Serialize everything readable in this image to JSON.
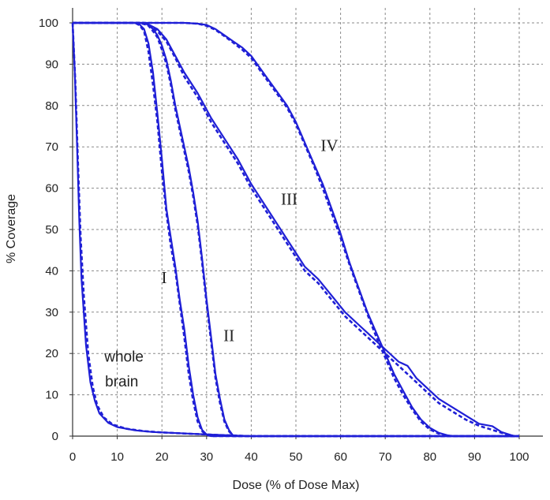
{
  "chart_data": {
    "type": "line",
    "title": "",
    "xlabel": "Dose (% of Dose Max)",
    "ylabel": "% Coverage",
    "xlim": [
      0,
      100
    ],
    "ylim": [
      0,
      100
    ],
    "x_ticks": [
      "0",
      "10",
      "20",
      "30",
      "40",
      "50",
      "60",
      "70",
      "80",
      "90",
      "100"
    ],
    "y_ticks": [
      "0",
      "10",
      "20",
      "30",
      "40",
      "50",
      "60",
      "70",
      "80",
      "90",
      "100"
    ],
    "grid": true,
    "color": "#1f1fd6",
    "annotations": [
      {
        "text": "I",
        "x": 20.5,
        "y": 37
      },
      {
        "text": "II",
        "x": 35,
        "y": 23
      },
      {
        "text": "III",
        "x": 48.5,
        "y": 56
      },
      {
        "text": "IV",
        "x": 57.5,
        "y": 69
      },
      {
        "text": "whole",
        "x": 11.5,
        "y": 18
      },
      {
        "text": "brain",
        "x": 11,
        "y": 12
      }
    ],
    "series": [
      {
        "label": "whole brain",
        "style": "solid",
        "x": [
          0,
          0.5,
          1,
          1.5,
          2,
          3,
          4,
          5,
          6,
          8,
          10,
          14,
          18,
          24,
          30,
          35,
          40,
          60,
          100
        ],
        "y": [
          100,
          88,
          70,
          52,
          38,
          22,
          13,
          8.5,
          5.5,
          3.2,
          2.2,
          1.4,
          1.0,
          0.7,
          0.4,
          0.2,
          0,
          0,
          0
        ]
      },
      {
        "label": "whole brain",
        "style": "dashed",
        "x": [
          0,
          0.6,
          1.2,
          1.8,
          2.5,
          3.5,
          4.5,
          5.5,
          7,
          9,
          12,
          16,
          20,
          26,
          32,
          40,
          60,
          100
        ],
        "y": [
          100,
          86,
          66,
          48,
          34,
          20,
          12,
          7.5,
          4.5,
          2.8,
          1.8,
          1.2,
          0.9,
          0.6,
          0.3,
          0,
          0,
          0
        ]
      },
      {
        "label": "I",
        "style": "solid",
        "x": [
          0,
          14,
          15,
          16,
          17,
          18,
          19,
          20,
          21,
          22,
          23,
          24,
          25,
          26,
          27,
          28,
          29,
          30,
          31,
          32,
          35,
          100
        ],
        "y": [
          100,
          100,
          99.6,
          98.5,
          95,
          88,
          78,
          67,
          55,
          48,
          41,
          33,
          26,
          17,
          10,
          4.5,
          1.5,
          0.4,
          0,
          0,
          0,
          0
        ]
      },
      {
        "label": "I",
        "style": "dashed",
        "x": [
          0,
          14,
          15,
          16,
          17,
          18,
          19,
          20,
          21,
          22,
          23,
          24,
          25,
          26,
          27,
          28,
          29,
          30,
          31,
          32,
          35,
          100
        ],
        "y": [
          100,
          100,
          99.4,
          98,
          93,
          85,
          76,
          64,
          54,
          46,
          40,
          32,
          24,
          15,
          8.5,
          3.5,
          1.2,
          0.3,
          0,
          0,
          0,
          0
        ]
      },
      {
        "label": "II",
        "style": "solid",
        "x": [
          0,
          16,
          17,
          18,
          19,
          20,
          21,
          22,
          23,
          24,
          25,
          26,
          27,
          28,
          29,
          30,
          31,
          32,
          33,
          34,
          35,
          36,
          100
        ],
        "y": [
          100,
          100,
          99.5,
          98.5,
          97,
          94.5,
          91,
          86,
          80,
          75,
          70,
          65,
          59,
          52,
          43,
          33,
          24,
          15,
          9,
          4,
          1.5,
          0,
          0
        ]
      },
      {
        "label": "II",
        "style": "dashed",
        "x": [
          0,
          16,
          17,
          18,
          19,
          20,
          21,
          22,
          23,
          24,
          25,
          26,
          27,
          28,
          29,
          30,
          31,
          32,
          33,
          34,
          35,
          36,
          100
        ],
        "y": [
          100,
          100,
          99.3,
          98,
          96.5,
          93.5,
          90,
          85,
          79,
          74,
          69,
          64,
          58,
          51,
          42,
          32,
          23,
          14,
          8,
          3.5,
          1.2,
          0,
          0
        ]
      },
      {
        "label": "III",
        "style": "solid",
        "x": [
          0,
          15,
          17,
          19,
          21,
          23,
          25,
          28,
          31,
          34,
          37,
          40,
          43,
          46,
          49,
          52,
          55,
          58,
          61,
          64,
          67,
          70,
          73,
          75,
          77,
          79,
          82,
          85,
          88,
          91,
          94,
          96,
          98,
          99
        ],
        "y": [
          100,
          100,
          99.6,
          98.5,
          96,
          92,
          88,
          83,
          77,
          72,
          67,
          61,
          56,
          51,
          46,
          41,
          38,
          34,
          30,
          27,
          24,
          21,
          18,
          17,
          14,
          12,
          9,
          7,
          5,
          3,
          2.4,
          1,
          0.3,
          0
        ]
      },
      {
        "label": "III",
        "style": "dashed",
        "x": [
          0,
          15,
          17,
          19,
          21,
          23,
          25,
          28,
          31,
          34,
          37,
          40,
          43,
          46,
          49,
          52,
          55,
          58,
          61,
          64,
          67,
          70,
          73,
          76,
          79,
          82,
          85,
          88,
          91,
          94,
          96,
          98,
          99
        ],
        "y": [
          100,
          100,
          99.4,
          98,
          95.5,
          91.5,
          87,
          82,
          76,
          71,
          66,
          60,
          55,
          50,
          45,
          40,
          37,
          33,
          29,
          26,
          23,
          20,
          17,
          14,
          11,
          8,
          6,
          4,
          2.5,
          1.5,
          0.8,
          0.2,
          0
        ]
      },
      {
        "label": "IV",
        "style": "solid",
        "x": [
          0,
          25,
          28,
          30,
          32,
          34,
          36,
          38,
          40,
          42,
          44,
          46,
          48,
          50,
          52,
          54,
          56,
          58,
          60,
          62,
          64,
          66,
          68,
          70,
          72,
          74,
          76,
          78,
          80,
          82,
          84,
          85,
          100
        ],
        "y": [
          100,
          100,
          99.8,
          99.5,
          98.5,
          97,
          95.5,
          94,
          92,
          89,
          86,
          83,
          80,
          76,
          71,
          66,
          61,
          55,
          49,
          42,
          36,
          30,
          25,
          20,
          15,
          11,
          7,
          4,
          2,
          0.8,
          0.2,
          0,
          0
        ]
      },
      {
        "label": "IV",
        "style": "dashed",
        "x": [
          0,
          25,
          28,
          30,
          32,
          34,
          36,
          38,
          40,
          42,
          44,
          46,
          48,
          50,
          52,
          54,
          56,
          58,
          60,
          62,
          64,
          66,
          68,
          70,
          72,
          74,
          76,
          78,
          80,
          82,
          84,
          86,
          100
        ],
        "y": [
          100,
          100,
          99.8,
          99.3,
          98.3,
          96.8,
          95.2,
          93.5,
          91.5,
          88.5,
          85.5,
          82.5,
          79.5,
          75.5,
          70.5,
          65.5,
          60,
          54,
          48,
          41.5,
          35.5,
          29.5,
          24,
          19,
          14,
          10,
          6.5,
          3.5,
          1.6,
          0.6,
          0.1,
          0,
          0
        ]
      }
    ]
  }
}
